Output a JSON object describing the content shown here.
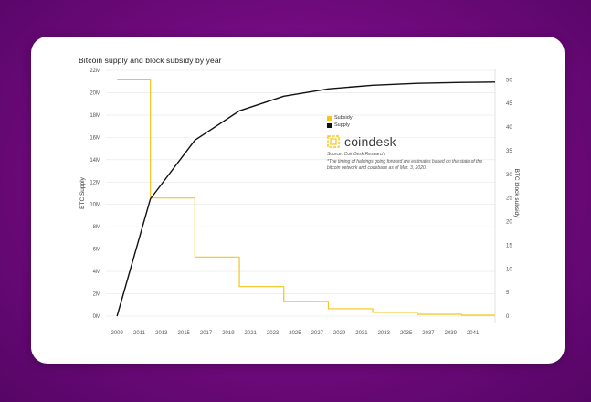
{
  "chart_data": {
    "type": "line",
    "title": "Bitcoin supply and block subsidy by year",
    "ylabel": "BTC Supply",
    "y2label": "BTC block subsidy",
    "xlim": [
      2008,
      2043
    ],
    "ylim": [
      0,
      22
    ],
    "y2lim": [
      0,
      52
    ],
    "x_ticks": [
      2009,
      2011,
      2013,
      2015,
      2017,
      2019,
      2021,
      2023,
      2025,
      2027,
      2029,
      2031,
      2033,
      2035,
      2037,
      2039,
      2041
    ],
    "y_ticks": [
      "0M",
      "2M",
      "4M",
      "6M",
      "8M",
      "10M",
      "12M",
      "14M",
      "16M",
      "18M",
      "20M",
      "22M"
    ],
    "y2_ticks": [
      0,
      5,
      10,
      15,
      20,
      25,
      30,
      35,
      40,
      45,
      50
    ],
    "series": [
      {
        "name": "Subsidy",
        "axis": "right",
        "step": true,
        "color": "#f5c51a",
        "x": [
          2009,
          2012,
          2016,
          2020,
          2024,
          2028,
          2032,
          2036,
          2040,
          2043
        ],
        "values": [
          50,
          25,
          12.5,
          6.25,
          3.125,
          1.5625,
          0.78125,
          0.390625,
          0.1953125,
          0.1953125
        ]
      },
      {
        "name": "Supply",
        "axis": "left",
        "step": false,
        "color": "#111111",
        "x": [
          2009,
          2012,
          2016,
          2020,
          2024,
          2028,
          2032,
          2036,
          2040,
          2043
        ],
        "values": [
          0,
          10.5,
          15.75,
          18.375,
          19.6875,
          20.34,
          20.67,
          20.84,
          20.92,
          20.95
        ]
      }
    ],
    "legend_position": "inside-right"
  },
  "brand": {
    "name": "coindesk"
  },
  "source": "Source: CoinDesk Research",
  "note": "*The timing of halvings going forward are estimates based on the state of the bitcoin network and codebase as of Mar. 3, 2020."
}
